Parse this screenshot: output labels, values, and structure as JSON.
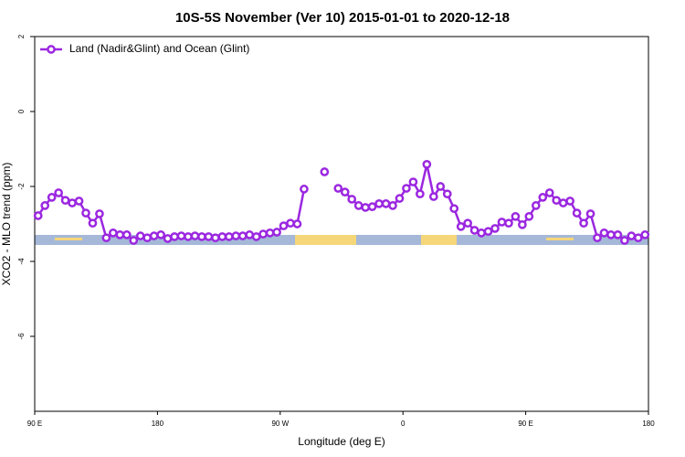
{
  "chart_data": {
    "type": "line",
    "title": "10S-5S November (Ver 10)   2015-01-01 to 2020-12-18",
    "x_label": "Longitude (deg E)",
    "y_label": "XCO2 - MLO trend (ppm)",
    "x": [
      92.5,
      97.5,
      102.5,
      107.5,
      112.5,
      117.5,
      122.5,
      127.5,
      132.5,
      137.5,
      142.5,
      147.5,
      152.5,
      157.5,
      162.5,
      167.5,
      172.5,
      177.5,
      182.5,
      187.5,
      192.5,
      197.5,
      202.5,
      207.5,
      212.5,
      217.5,
      222.5,
      227.5,
      232.5,
      237.5,
      242.5,
      247.5,
      252.5,
      257.5,
      262.5,
      267.5,
      272.5,
      277.5,
      282.5,
      287.5,
      292.5,
      297.5,
      302.5,
      307.5,
      312.5,
      317.5,
      322.5,
      327.5,
      332.5,
      337.5,
      342.5,
      347.5,
      352.5,
      357.5,
      362.5,
      367.5,
      372.5,
      377.5,
      382.5,
      387.5,
      392.5,
      397.5,
      402.5,
      407.5,
      412.5,
      417.5,
      422.5,
      427.5,
      432.5,
      437.5,
      442.5,
      447.5,
      452.5,
      457.5,
      462.5,
      467.5,
      472.5,
      477.5,
      482.5,
      487.5,
      492.5,
      497.5,
      502.5,
      507.5,
      512.5,
      517.5,
      522.5,
      527.5,
      532.5,
      537.5
    ],
    "series": [
      {
        "name": "Land (Nadir&Glint) and Ocean (Glint)",
        "color": "#9b27e0",
        "values": [
          -2.78,
          -2.51,
          -2.29,
          -2.17,
          -2.37,
          -2.44,
          -2.39,
          -2.71,
          -2.98,
          -2.73,
          -3.37,
          -3.24,
          -3.29,
          -3.29,
          -3.44,
          -3.32,
          -3.37,
          -3.32,
          -3.29,
          -3.39,
          -3.34,
          -3.32,
          -3.34,
          -3.32,
          -3.34,
          -3.34,
          -3.37,
          -3.34,
          -3.34,
          -3.32,
          -3.32,
          -3.29,
          -3.34,
          -3.27,
          -3.24,
          -3.22,
          -3.05,
          -2.98,
          -3.0,
          -2.07,
          null,
          null,
          -1.61,
          null,
          -2.05,
          -2.15,
          -2.34,
          -2.51,
          -2.56,
          -2.54,
          -2.46,
          -2.46,
          -2.51,
          -2.32,
          -2.05,
          -1.88,
          -2.2,
          -1.41,
          -2.27,
          -2.0,
          -2.2,
          -2.59,
          -3.07,
          -2.98,
          -3.17,
          -3.24,
          -3.2,
          -3.12,
          -2.95,
          -2.98,
          -2.8,
          -3.02,
          -2.8,
          -2.51,
          -2.29,
          -2.17,
          -2.37,
          -2.44,
          -2.39,
          -2.71,
          -2.98,
          -2.73,
          -3.37,
          -3.24,
          -3.29,
          -3.29,
          -3.44,
          -3.32,
          -3.37,
          -3.29
        ]
      }
    ],
    "xlim": [
      90,
      540
    ],
    "xticks": [
      {
        "value": 90,
        "label": "90 E"
      },
      180,
      {
        "value": 270,
        "label": "90 W"
      },
      {
        "value": 360,
        "label": "0"
      },
      {
        "value": 450,
        "label": "90 E"
      },
      {
        "value": 540,
        "label": "180"
      }
    ],
    "ylim": [
      -8,
      2
    ],
    "yticks": [
      2,
      0,
      -2,
      -4,
      -6
    ],
    "legend": "upper left"
  }
}
